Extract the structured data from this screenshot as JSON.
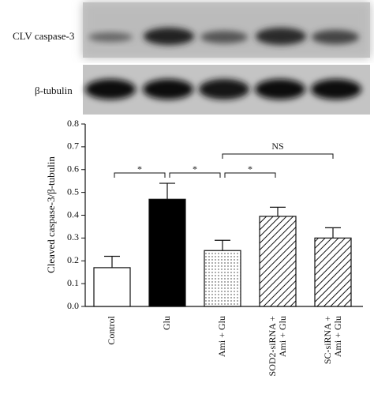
{
  "chart_data": {
    "type": "bar",
    "blot_labels": [
      "CLV caspase-3",
      "β-tubulin"
    ],
    "y_label": "Cleaved caspase-3/β-tubulin",
    "categories": [
      "Control",
      "Glu",
      "Ami + Glu",
      [
        "SOD2-siRNA +",
        "Ami + Glu"
      ],
      [
        "SC-siRNA +",
        "Ami + Glu"
      ]
    ],
    "values": [
      0.17,
      0.47,
      0.245,
      0.395,
      0.3
    ],
    "errors": [
      0.05,
      0.07,
      0.045,
      0.04,
      0.045
    ],
    "fills": [
      "white",
      "black",
      "dots",
      "hatch",
      "hatch"
    ],
    "ylim": [
      0,
      0.8
    ],
    "yticks": [
      {
        "value": 0,
        "label": "0.0"
      },
      0.1,
      0.2,
      0.3,
      0.4,
      0.5,
      0.6,
      0.7,
      0.8
    ],
    "annotations": [
      {
        "text": "*",
        "between": [
          0,
          1
        ]
      },
      {
        "text": "*",
        "between": [
          1,
          2
        ]
      },
      {
        "text": "*",
        "between": [
          2,
          3
        ]
      },
      {
        "text": "NS",
        "between": [
          2,
          4
        ]
      }
    ]
  }
}
